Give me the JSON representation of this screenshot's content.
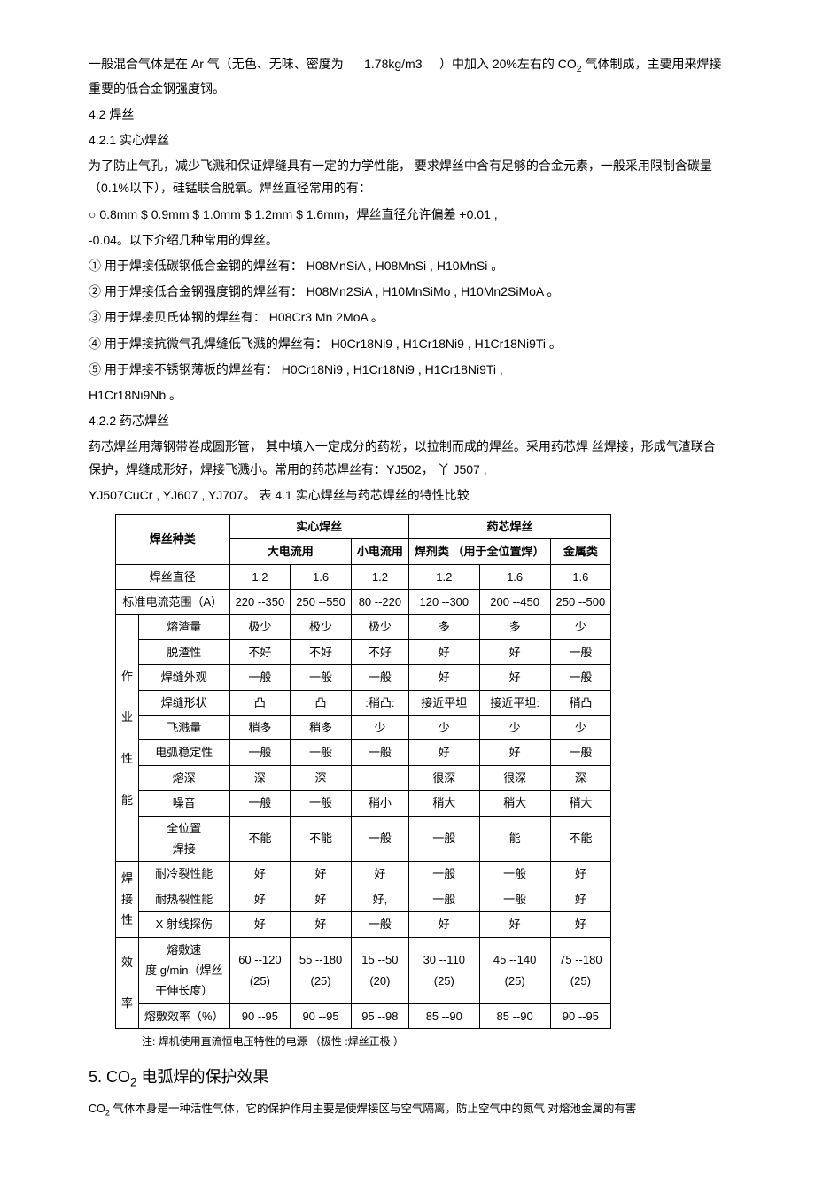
{
  "p1a": "一般混合气体是在 Ar 气（无色、无味、密度为",
  "p1b": "1.78kg/m3",
  "p1c": "）中加入 20%左右的 CO",
  "p1d": " 气体制成，主要用来焊接重要的低合金钢强度钢。",
  "s42": "4.2 焊丝",
  "s421": "4.2.1  实心焊丝",
  "p2": "为了防止气孔，减少飞溅和保证焊缝具有一定的力学性能，      要求焊丝中含有足够的合金元素，一般采用限制含碳量（0.1%以下），硅锰联合脱氧。焊丝直径常用的有：",
  "p3": "○ 0.8mm     $ 0.9mm     $ 1.0mm    $ 1.2mm      $ 1.6mm，焊丝直径允许偏差 +0.01       ,",
  "p4": "-0.04。以下介绍几种常用的焊丝。",
  "li1": "①    用于焊接低碳钢低合金钢的焊丝有：    H08MnSiA ,  H08MnSi ,  H10MnSi 。",
  "li2": "②    用于焊接低合金钢强度钢的焊丝有：    H08Mn2SiA ,  H10MnSiMo ,  H10Mn2SiMoA 。",
  "li3": "③    用于焊接贝氏体钢的焊丝有：    H08Cr3 Mn 2MoA    。",
  "li4": "④    用于焊接抗微气孔焊缝低飞溅的焊丝有：     H0Cr18Ni9 ,  H1Cr18Ni9 ,  H1Cr18Ni9Ti 。",
  "li5": "⑤    用于焊接不锈钢薄板的焊丝有：   H0Cr18Ni9 ,  H1Cr18Ni9 ,  H1Cr18Ni9Ti ,",
  "li5b": "H1Cr18Ni9Nb 。",
  "s422": "4.2.2 药芯焊丝",
  "p5": "药芯焊丝用薄钢带卷成圆形管， 其中填入一定成分的药粉，以拉制而成的焊丝。采用药芯焊 丝焊接，形成气渣联合保护，焊缝成形好，焊接飞溅小。常用的药芯焊丝有：YJ502， 丫 J507 ,",
  "p6": "YJ507CuCr ,  YJ607 ,  YJ707。  表 4.1 实心焊丝与药芯焊丝的特性比较",
  "t": {
    "h1": "焊丝种类",
    "h2": "实心焊丝",
    "h3": "药芯焊丝",
    "h4": "大电流用",
    "h5": "小电流用",
    "h6": "焊剂类 （用于全位置焊）",
    "h7": "金属类",
    "r_dia": "焊丝直径",
    "d1": "1.2",
    "d2": "1.6",
    "d3": "1.2",
    "d4": "1.2",
    "d5": "1.6",
    "d6": "1.6",
    "r_cur": "标准电流范围（A）",
    "c1": "220 --350",
    "c2": "250 --550",
    "c3": "80 --220",
    "c4": "120 --300",
    "c5": "200 --450",
    "c6": "250 --500",
    "g1": "作业性能",
    "r1": "熔渣量",
    "r1v": [
      "极少",
      "极少",
      "极少",
      "多",
      "多",
      "少"
    ],
    "r2": "脱渣性",
    "r2v": [
      "不好",
      "不好",
      "不好",
      "好",
      "好",
      "一般"
    ],
    "r3": "焊缝外观",
    "r3v": [
      "一般",
      "一般",
      "一般",
      "好",
      "好",
      "一般"
    ],
    "r4": "焊缝形状",
    "r4v": [
      "凸",
      "凸",
      ":稍凸:",
      "接近平坦",
      "接近平坦:",
      "稍凸"
    ],
    "r5": "飞溅量",
    "r5v": [
      "稍多",
      "稍多",
      "少",
      "少",
      "少",
      "少"
    ],
    "r6": "电弧稳定性",
    "r6v": [
      "一般",
      "一般",
      "一般",
      "好",
      "好",
      "一般"
    ],
    "r7": "熔深",
    "r7v": [
      "深",
      "深",
      "",
      "很深",
      "很深",
      "深"
    ],
    "r8": "噪音",
    "r8v": [
      "一般",
      "一般",
      "稍小",
      "稍大",
      "稍大",
      "稍大"
    ],
    "r9": "全位置",
    "r9v": [
      "不能",
      "不能",
      "一般",
      "一般",
      "能",
      "不能"
    ],
    "r9b": "焊接",
    "g2": "焊接性",
    "r10": "耐冷裂性能",
    "r10v": [
      "好",
      "好",
      "好",
      "一般",
      "一般",
      "好"
    ],
    "r11": "耐热裂性能",
    "r11v": [
      "好",
      "好",
      "好,",
      "一般",
      "一般",
      "好"
    ],
    "r12": "X 射线探伤",
    "r12v": [
      "好",
      "好",
      "一般",
      "好",
      "好",
      "好"
    ],
    "g3": "效率",
    "r13a": "熔敷速",
    "r13b": "度 g/min（焊丝",
    "r13c": "干伸长度）",
    "r13v1": [
      "60 --120",
      "55 --180",
      "15 --50",
      "30 --110",
      "45 --140",
      "75 --180"
    ],
    "r13v2": [
      "(25)",
      "(25)",
      "(20)",
      "(25)",
      "(25)",
      "(25)"
    ],
    "r14": "熔敷效率（%）",
    "r14v": [
      "90 --95",
      "90 --95",
      "95 --98",
      "85 --90",
      "85 --90",
      "90 --95"
    ]
  },
  "note": "注: 焊机使用直流恒电压特性的电源  （极性 :焊丝正极 ）",
  "h5t_a": "5. CO",
  "h5t_b": " 电弧焊的保护效果",
  "p7a": "CO",
  "p7b": " 气体本身是一种活性气体，它的保护作用主要是使焊接区与空气隔离，防止空气中的氮气 对熔池金属的有害"
}
